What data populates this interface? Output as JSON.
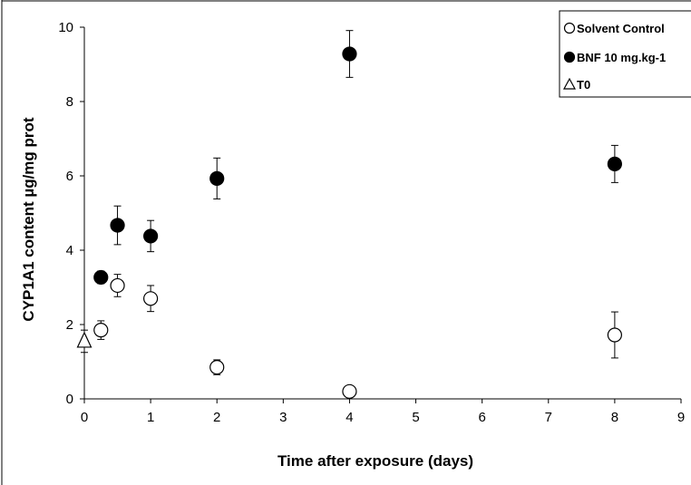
{
  "chart_data": {
    "type": "scatter",
    "title": "",
    "xlabel": "Time after exposure (days)",
    "ylabel": "CYP1A1 content µg/mg prot",
    "xlim": [
      0,
      9
    ],
    "ylim": [
      0,
      10
    ],
    "x_ticks": [
      0,
      1,
      2,
      3,
      4,
      5,
      6,
      7,
      8,
      9
    ],
    "y_ticks": [
      0,
      2,
      4,
      6,
      8,
      10
    ],
    "grid": false,
    "legend_position": "top-right",
    "series": [
      {
        "name": "Solvent Control",
        "marker": "open-circle",
        "x": [
          0.25,
          0.5,
          1,
          2,
          4,
          8
        ],
        "y": [
          1.85,
          3.05,
          2.7,
          0.85,
          0.2,
          1.72
        ],
        "error": [
          0.25,
          0.3,
          0.35,
          0.2,
          0.0,
          0.62
        ]
      },
      {
        "name": "BNF 10 mg.kg-1",
        "marker": "filled-circle",
        "x": [
          0.25,
          0.5,
          1,
          2,
          4,
          8
        ],
        "y": [
          3.27,
          4.67,
          4.38,
          5.93,
          9.28,
          6.32
        ],
        "error": [
          0.17,
          0.52,
          0.42,
          0.55,
          0.63,
          0.5
        ]
      },
      {
        "name": "T0",
        "marker": "open-triangle",
        "x": [
          0
        ],
        "y": [
          1.55
        ],
        "error": [
          0.3
        ]
      }
    ]
  },
  "colors": {
    "axis": "#000000",
    "marker_fill_filled": "#000000",
    "marker_fill_open": "#ffffff",
    "stroke": "#000000"
  }
}
